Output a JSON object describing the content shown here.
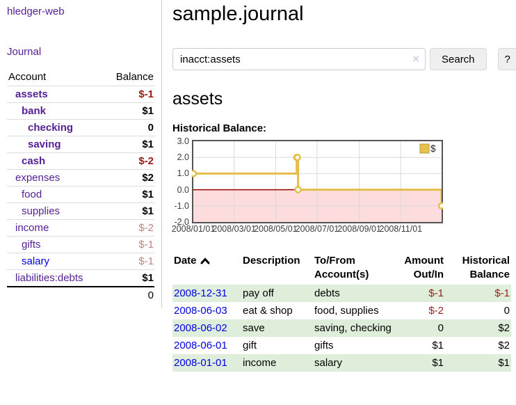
{
  "sidebar": {
    "brand": "hledger-web",
    "journal_label": "Journal",
    "accounts_header": {
      "account": "Account",
      "balance": "Balance"
    },
    "accounts": [
      {
        "name": "assets",
        "indent": 1,
        "bold": true,
        "balance": "$-1",
        "negative": "strong"
      },
      {
        "name": "bank",
        "indent": 2,
        "bold": true,
        "balance": "$1"
      },
      {
        "name": "checking",
        "indent": 3,
        "bold": true,
        "balance": "0"
      },
      {
        "name": "saving",
        "indent": 3,
        "bold": true,
        "balance": "$1"
      },
      {
        "name": "cash",
        "indent": 2,
        "bold": true,
        "balance": "$-2",
        "negative": "strong"
      },
      {
        "name": "expenses",
        "indent": 1,
        "bold": false,
        "balance": "$2"
      },
      {
        "name": "food",
        "indent": 2,
        "bold": false,
        "balance": "$1"
      },
      {
        "name": "supplies",
        "indent": 2,
        "bold": false,
        "balance": "$1"
      },
      {
        "name": "income",
        "indent": 1,
        "bold": false,
        "balance": "$-2",
        "negative": "soft"
      },
      {
        "name": "gifts",
        "indent": 2,
        "bold": false,
        "balance": "$-1",
        "negative": "soft"
      },
      {
        "name": "salary",
        "indent": 2,
        "bold": false,
        "balance": "$-1",
        "negative": "soft",
        "link_color": "blue"
      },
      {
        "name": "liabilities:debts",
        "indent": 1,
        "bold": false,
        "balance": "$1"
      }
    ],
    "total": "0"
  },
  "main": {
    "title": "sample.journal",
    "search": {
      "value": "inacct:assets",
      "clear_icon": "×",
      "button_label": "Search",
      "help_label": "?"
    },
    "account_heading": "assets",
    "chart_label": "Historical Balance:"
  },
  "chart_data": {
    "type": "line",
    "steps": true,
    "title": "Historical Balance",
    "series": [
      {
        "name": "$",
        "color": "#e6bd4a",
        "points": [
          [
            "2008-01-01",
            1
          ],
          [
            "2008-06-01",
            2
          ],
          [
            "2008-06-02",
            2
          ],
          [
            "2008-06-03",
            0
          ],
          [
            "2008-12-31",
            -1
          ]
        ]
      }
    ],
    "x_range": [
      "2008-01-01",
      "2008-12-31"
    ],
    "x_ticks": [
      "2008/01/01",
      "2008/03/01",
      "2008/05/01",
      "2008/07/01",
      "2008/09/01",
      "2008/11/01"
    ],
    "y_ticks": [
      3.0,
      2.0,
      1.0,
      0.0,
      -1.0,
      -2.0
    ],
    "ylim": [
      -2,
      3
    ],
    "grid": true,
    "legend_position": "top-right",
    "colors": {
      "negative_fill": "#fcdcdc",
      "zero_line": "#990000",
      "gridline": "#d9d9d9",
      "border": "#545454",
      "legend_swatch": "#e8c14d",
      "legend_swatch_border": "#b89b3a"
    }
  },
  "register": {
    "headers": {
      "date": "Date",
      "description": "Description",
      "accounts": "To/From Account(s)",
      "amount": "Amount Out/In",
      "balance": "Historical Balance"
    },
    "sort_icon": "chevron-up",
    "rows": [
      {
        "date": "2008-12-31",
        "description": "pay off",
        "accounts": "debts",
        "amount": "$-1",
        "balance": "$-1",
        "amount_negative": true,
        "balance_negative": true
      },
      {
        "date": "2008-06-03",
        "description": "eat & shop",
        "accounts": "food, supplies",
        "amount": "$-2",
        "balance": "0",
        "amount_negative": true,
        "balance_negative": false
      },
      {
        "date": "2008-06-02",
        "description": "save",
        "accounts": "saving, checking",
        "amount": "0",
        "balance": "$2",
        "amount_negative": false,
        "balance_negative": false
      },
      {
        "date": "2008-06-01",
        "description": "gift",
        "accounts": "gifts",
        "amount": "$1",
        "balance": "$2",
        "amount_negative": false,
        "balance_negative": false
      },
      {
        "date": "2008-01-01",
        "description": "income",
        "accounts": "salary",
        "amount": "$1",
        "balance": "$1",
        "amount_negative": false,
        "balance_negative": false
      }
    ]
  }
}
